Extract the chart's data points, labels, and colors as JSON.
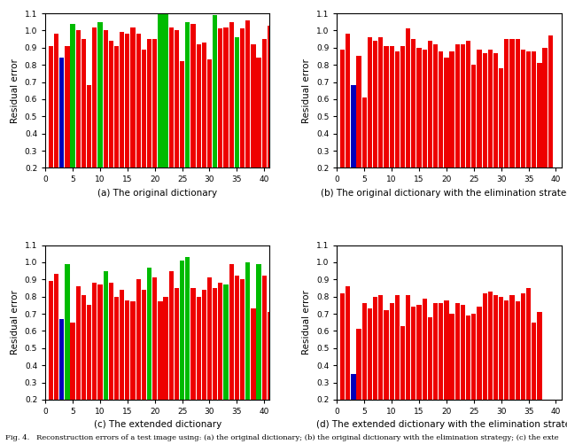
{
  "subplot_titles": [
    "(a) The original dictionary",
    "(b) The original dictionary with the elimination strategy",
    "(c) The extended dictionary",
    "(d) The extended dictionary with the elimination strategy"
  ],
  "ylabel": "Residual error",
  "ylim": [
    0.2,
    1.1
  ],
  "xlim": [
    0,
    41
  ],
  "xticks": [
    0,
    5,
    10,
    15,
    20,
    25,
    30,
    35,
    40
  ],
  "yticks": [
    0.2,
    0.3,
    0.4,
    0.5,
    0.6,
    0.7,
    0.8,
    0.9,
    1.0,
    1.1
  ],
  "subplot_a": {
    "values": [
      0.91,
      0.98,
      0.84,
      0.91,
      1.04,
      1.0,
      0.95,
      0.68,
      1.02,
      1.05,
      1.0,
      0.94,
      0.91,
      0.99,
      0.98,
      1.02,
      0.98,
      0.89,
      0.95,
      0.95,
      1.1,
      1.1,
      1.02,
      1.0,
      0.82,
      1.05,
      1.04,
      0.92,
      0.93,
      0.83,
      1.09,
      1.01,
      1.02,
      1.05,
      0.96,
      1.01,
      1.06,
      0.92,
      0.84,
      0.95,
      1.03
    ],
    "colors": [
      "r",
      "r",
      "b",
      "r",
      "g",
      "r",
      "r",
      "r",
      "r",
      "g",
      "r",
      "r",
      "r",
      "r",
      "r",
      "r",
      "r",
      "r",
      "r",
      "r",
      "g",
      "g",
      "r",
      "r",
      "r",
      "g",
      "r",
      "r",
      "r",
      "r",
      "g",
      "r",
      "r",
      "r",
      "g",
      "r",
      "r",
      "r",
      "r",
      "r",
      "r"
    ]
  },
  "subplot_b": {
    "values": [
      0.89,
      0.98,
      0.68,
      0.85,
      0.61,
      0.96,
      0.94,
      0.96,
      0.91,
      0.91,
      0.88,
      0.91,
      1.01,
      0.95,
      0.9,
      0.89,
      0.94,
      0.92,
      0.88,
      0.84,
      0.88,
      0.92,
      0.92,
      0.94,
      0.8,
      0.89,
      0.87,
      0.89,
      0.87,
      0.78,
      0.95,
      0.95,
      0.95,
      0.89,
      0.88,
      0.88,
      0.81,
      0.9,
      0.97
    ],
    "colors": [
      "r",
      "r",
      "b",
      "r",
      "r",
      "r",
      "r",
      "r",
      "r",
      "r",
      "r",
      "r",
      "r",
      "r",
      "r",
      "r",
      "r",
      "r",
      "r",
      "r",
      "r",
      "r",
      "r",
      "r",
      "r",
      "r",
      "r",
      "r",
      "r",
      "r",
      "r",
      "r",
      "r",
      "r",
      "r",
      "r",
      "r",
      "r",
      "r"
    ]
  },
  "subplot_c": {
    "values": [
      0.89,
      0.93,
      0.67,
      0.99,
      0.65,
      0.86,
      0.81,
      0.75,
      0.88,
      0.87,
      0.95,
      0.88,
      0.8,
      0.84,
      0.78,
      0.77,
      0.9,
      0.84,
      0.97,
      0.91,
      0.77,
      0.8,
      0.95,
      0.85,
      1.01,
      1.03,
      0.85,
      0.8,
      0.84,
      0.91,
      0.85,
      0.88,
      0.87,
      0.99,
      0.92,
      0.9,
      1.0,
      0.73,
      0.99,
      0.92,
      0.71
    ],
    "colors": [
      "r",
      "r",
      "b",
      "g",
      "r",
      "r",
      "r",
      "r",
      "r",
      "r",
      "g",
      "r",
      "r",
      "r",
      "r",
      "r",
      "r",
      "r",
      "g",
      "r",
      "r",
      "r",
      "r",
      "r",
      "g",
      "g",
      "r",
      "r",
      "r",
      "r",
      "r",
      "r",
      "g",
      "r",
      "r",
      "r",
      "g",
      "r",
      "g",
      "r",
      "r"
    ]
  },
  "subplot_d": {
    "values": [
      0.82,
      0.86,
      0.35,
      0.61,
      0.76,
      0.73,
      0.8,
      0.81,
      0.72,
      0.76,
      0.81,
      0.63,
      0.81,
      0.74,
      0.75,
      0.79,
      0.68,
      0.76,
      0.76,
      0.78,
      0.7,
      0.76,
      0.75,
      0.69,
      0.7,
      0.74,
      0.82,
      0.83,
      0.81,
      0.8,
      0.78,
      0.81,
      0.77,
      0.82,
      0.85,
      0.65,
      0.71
    ],
    "colors": [
      "r",
      "r",
      "b",
      "r",
      "r",
      "r",
      "r",
      "r",
      "r",
      "r",
      "r",
      "r",
      "r",
      "r",
      "r",
      "r",
      "r",
      "r",
      "r",
      "r",
      "r",
      "r",
      "r",
      "r",
      "r",
      "r",
      "r",
      "r",
      "r",
      "r",
      "r",
      "r",
      "r",
      "r",
      "r",
      "r",
      "r"
    ]
  },
  "color_map": {
    "r": "#ee0000",
    "g": "#00bb00",
    "b": "#0000bb"
  },
  "bar_width": 0.85,
  "title_fontsize": 7.5,
  "tick_fontsize": 6.5,
  "label_fontsize": 7.5,
  "caption": "Fig. 4.   Reconstruction errors of a test image using: (a) the original dictionary; (b) the original dictionary with the elimination strategy; (c) the exte"
}
